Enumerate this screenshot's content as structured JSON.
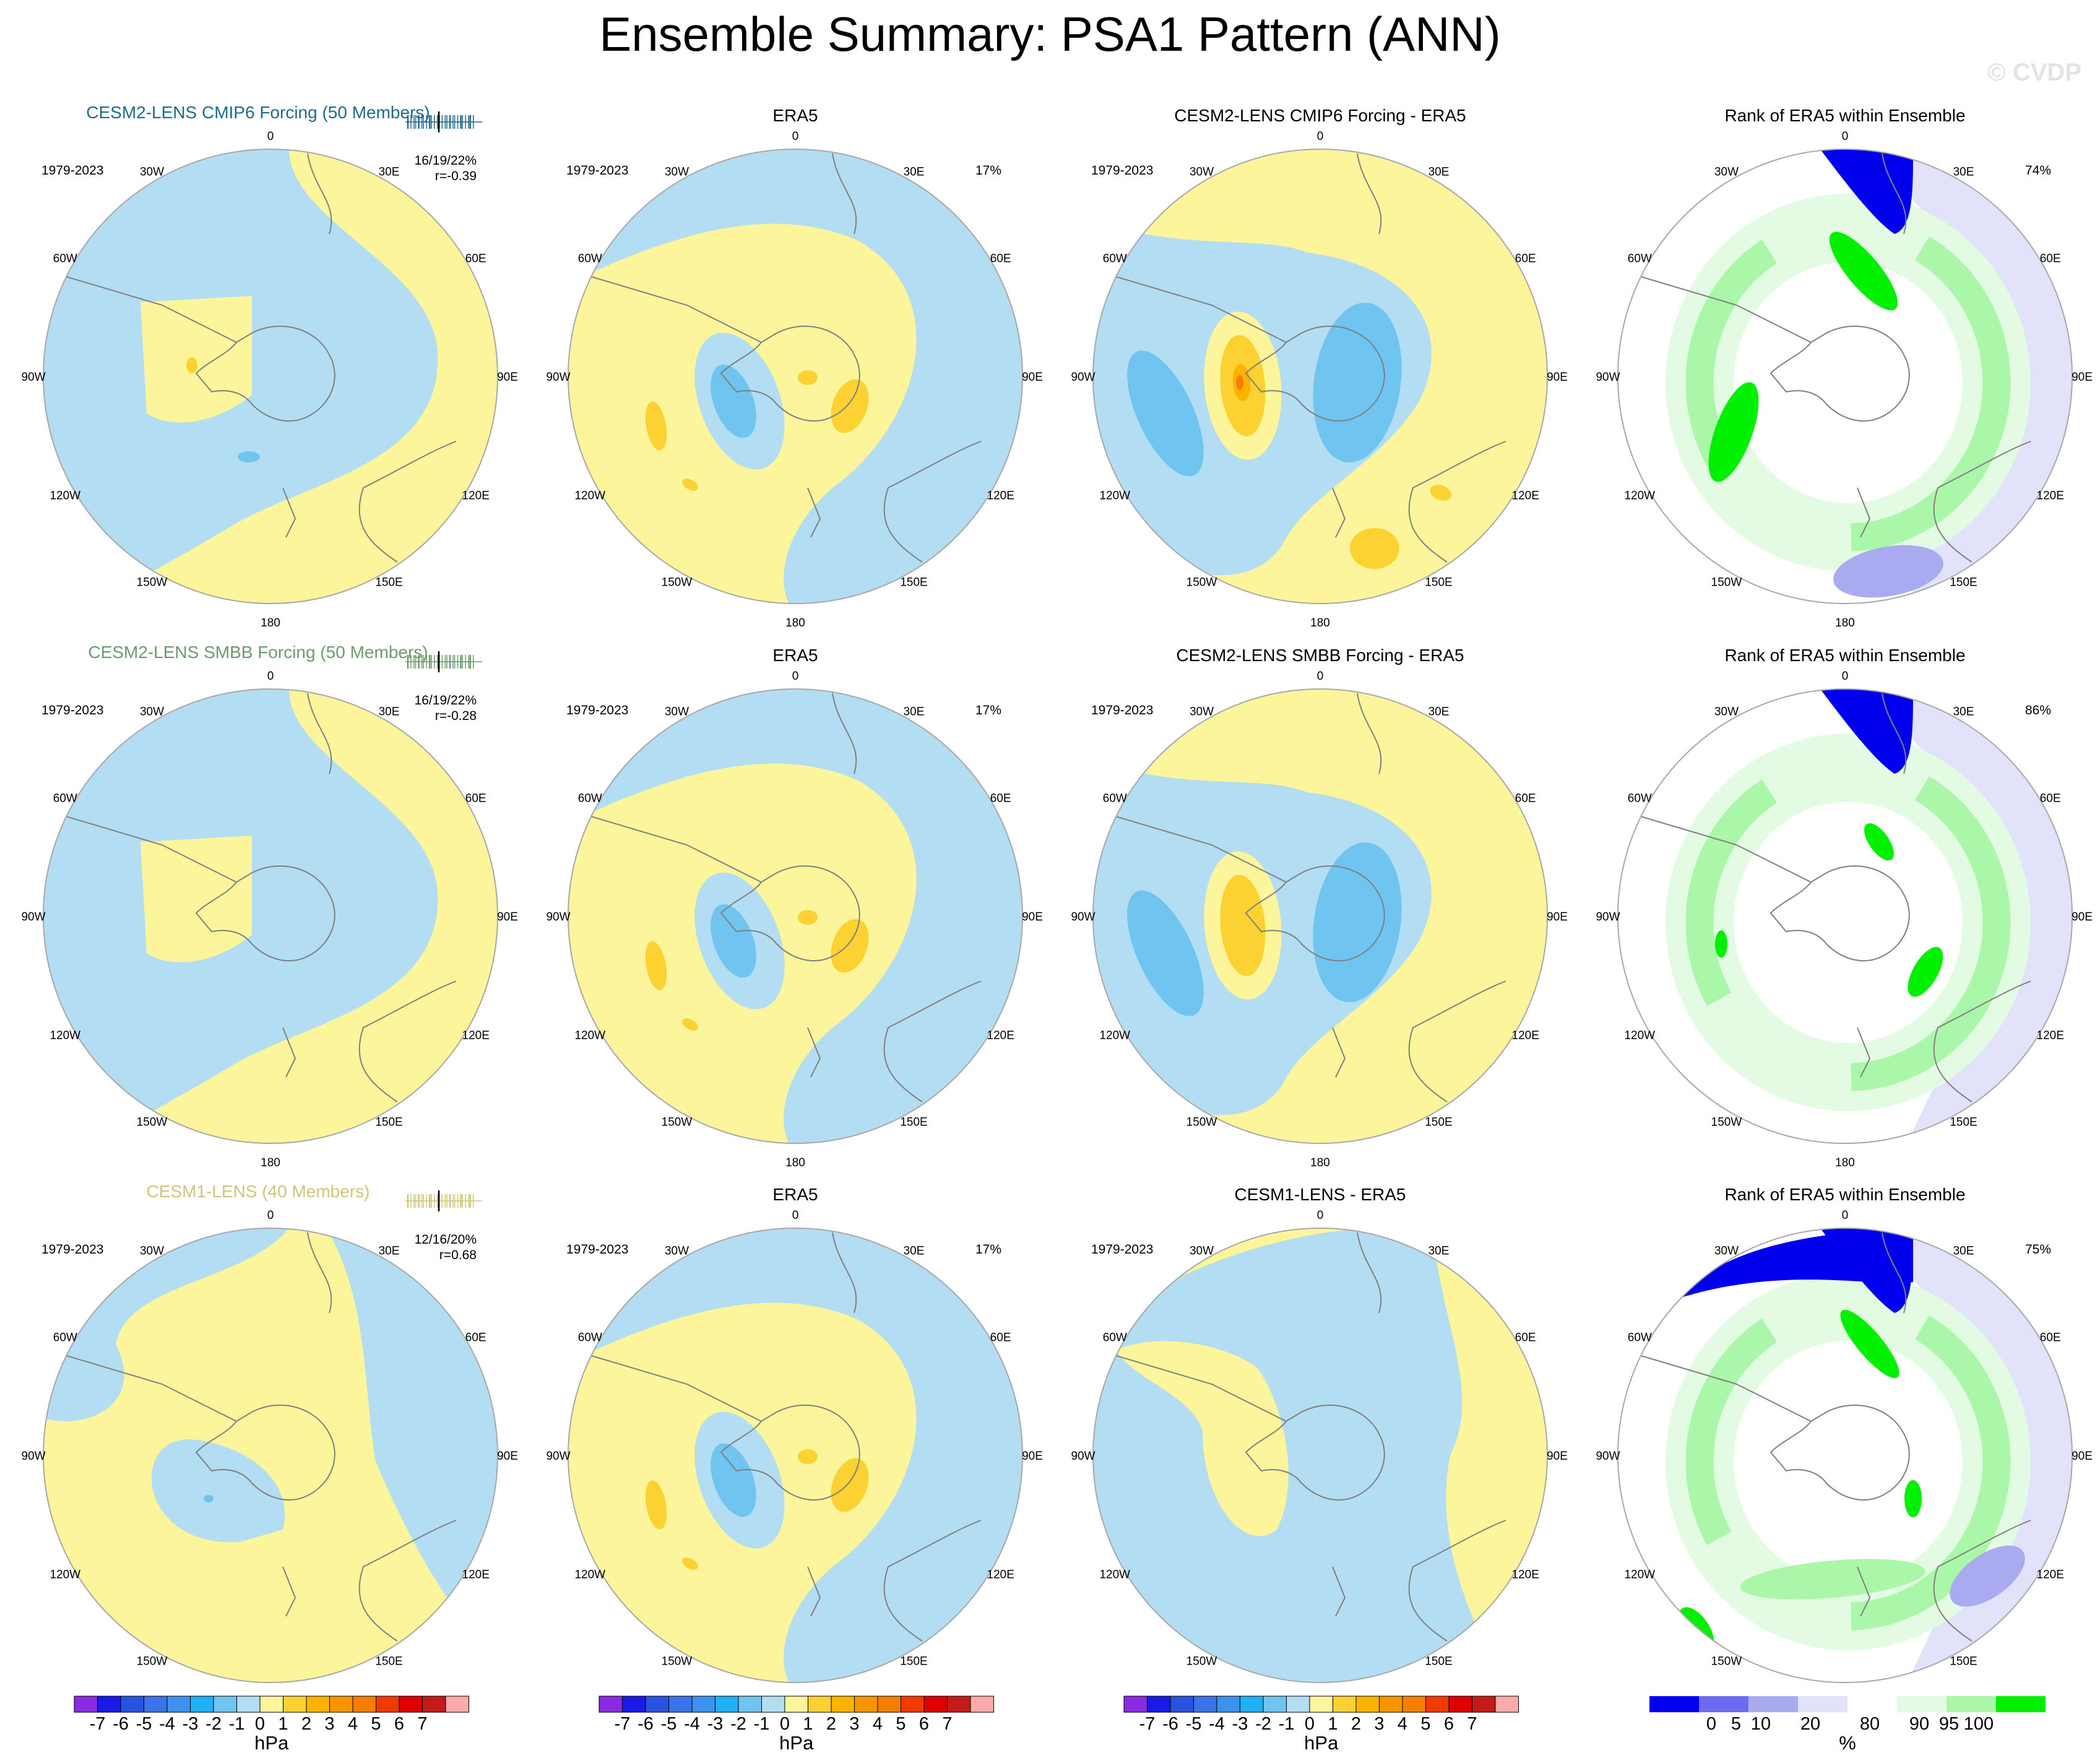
{
  "title": "Ensemble Summary: PSA1 Pattern (ANN)",
  "watermark": "© CVDP",
  "period": "1979-2023",
  "lon_labels": [
    "0",
    "30E",
    "60E",
    "90E",
    "120E",
    "150E",
    "180",
    "150W",
    "120W",
    "90W",
    "60W",
    "30W"
  ],
  "colors": {
    "anom_neg1": "#b3ddf2",
    "anom_neg2": "#6fc4f0",
    "anom_pos1": "#fcf59c",
    "anom_pos2": "#fcd233",
    "anom_pos3": "#fcb300",
    "anom_pos4": "#f57e00",
    "rank_white": "#ffffff",
    "rank_lightgreen": "#e2fbe2",
    "rank_midgreen": "#aaf7aa",
    "rank_green": "#00f000",
    "rank_lavender": "#e2e2fb",
    "rank_periwinkle": "#aaaaf0",
    "rank_blue": "#0000ee",
    "title_row1": "#1f6b8a",
    "title_row2": "#6e9a70",
    "title_row3": "#d2c57a",
    "coast": "#808080"
  },
  "rows": [
    {
      "ensemble_title": "CESM2-LENS CMIP6 Forcing (50 Members)",
      "title_color": "#1f6b8a",
      "pct_text": "16/19/22%",
      "r_text": "r=-0.39",
      "era5_pct": "17%",
      "diff_title": "CESM2-LENS CMIP6 Forcing - ERA5",
      "rank_title": "Rank of ERA5 within Ensemble",
      "rank_pct": "74%"
    },
    {
      "ensemble_title": "CESM2-LENS SMBB Forcing (50 Members)",
      "title_color": "#6e9a70",
      "pct_text": "16/19/22%",
      "r_text": "r=-0.28",
      "era5_pct": "17%",
      "diff_title": "CESM2-LENS SMBB Forcing - ERA5",
      "rank_title": "Rank of ERA5 within Ensemble",
      "rank_pct": "86%"
    },
    {
      "ensemble_title": "CESM1-LENS (40 Members)",
      "title_color": "#d2c57a",
      "pct_text": "12/16/20%",
      "r_text": "r=0.68",
      "era5_pct": "17%",
      "diff_title": "CESM1-LENS - ERA5",
      "rank_title": "Rank of ERA5 within Ensemble",
      "rank_pct": "75%"
    }
  ],
  "era5_title": "ERA5",
  "anom_colorbar": {
    "labels": [
      "-7",
      "-6",
      "-5",
      "-4",
      "-3",
      "-2",
      "-1",
      "0",
      "1",
      "2",
      "3",
      "4",
      "5",
      "6",
      "7"
    ],
    "colors": [
      "#8a2be2",
      "#1a1ae6",
      "#2a52e0",
      "#3a74e8",
      "#3b93ef",
      "#1fb0f6",
      "#6fc4f0",
      "#b3ddf2",
      "#fcf59c",
      "#fcd233",
      "#fcb300",
      "#f79400",
      "#f57e00",
      "#f03a00",
      "#e00000",
      "#c41a1a",
      "#fcaaaa"
    ],
    "unit": "hPa"
  },
  "rank_colorbar": {
    "labels": [
      "0",
      "5",
      "10",
      "20",
      "80",
      "90",
      "95",
      "100"
    ],
    "colors": [
      "#0000ee",
      "#6b6bf0",
      "#aaaaf0",
      "#e2e2fb",
      "#ffffff",
      "#e2fbe2",
      "#aaf7aa",
      "#00f000"
    ],
    "unit": "%"
  }
}
